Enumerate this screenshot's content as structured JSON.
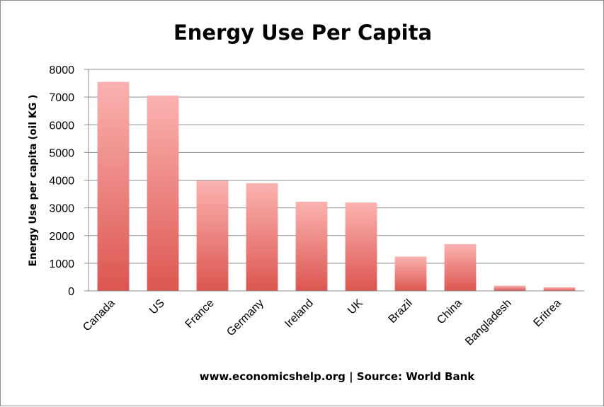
{
  "chart_data": {
    "type": "bar",
    "title": "Energy Use Per Capita",
    "xlabel": "",
    "ylabel": "Energy Use per capita (oil KG )",
    "footer": "www.economicshelp.org | Source: World Bank",
    "categories": [
      "Canada",
      "US",
      "France",
      "Germany",
      "Ireland",
      "UK",
      "Brazil",
      "China",
      "Bangladesh",
      "Eritrea"
    ],
    "values": [
      7550,
      7050,
      3980,
      3890,
      3220,
      3190,
      1240,
      1690,
      190,
      130
    ],
    "ylim": [
      0,
      8000
    ],
    "yticks": [
      0,
      1000,
      2000,
      3000,
      4000,
      5000,
      6000,
      7000,
      8000
    ],
    "grid": true,
    "legend": "none",
    "colors": {
      "bar_top": "#fbb3b1",
      "bar_bottom": "#dc5650",
      "grid": "#8c8c8c",
      "axis": "#8c8c8c"
    }
  }
}
